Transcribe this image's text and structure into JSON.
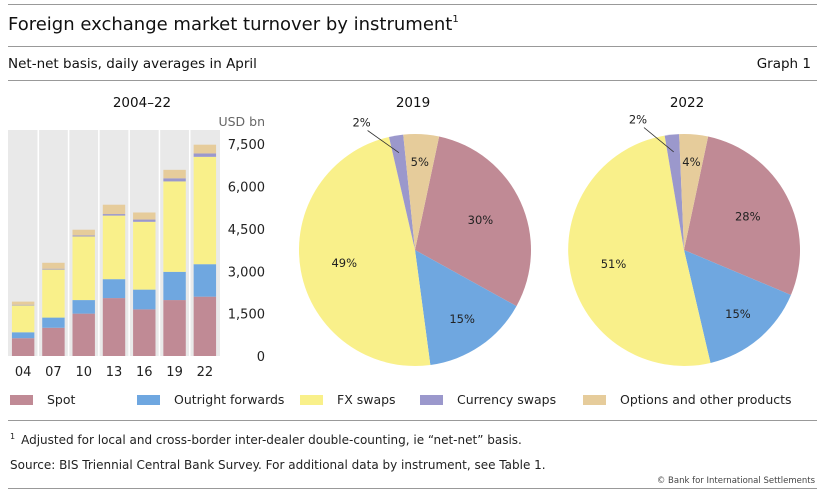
{
  "header": {
    "title": "Foreign exchange market turnover by instrument",
    "title_note": "1",
    "subtitle": "Net-net basis, daily averages in April",
    "graph_number": "Graph 1"
  },
  "colors": {
    "spot": "#c08a95",
    "outright": "#6fa7e0",
    "fxswaps": "#f9f08a",
    "currency_swaps": "#9b98cc",
    "options": "#e6cc9b",
    "panel_bg": "#e9e9e9"
  },
  "legend": [
    {
      "label": "Spot",
      "color": "#c08a95"
    },
    {
      "label": "Outright forwards",
      "color": "#6fa7e0"
    },
    {
      "label": "FX swaps",
      "color": "#f9f08a"
    },
    {
      "label": "Currency swaps",
      "color": "#9b98cc"
    },
    {
      "label": "Options and other products",
      "color": "#e6cc9b"
    }
  ],
  "footer": {
    "note_marker": "1",
    "note": "Adjusted for local and cross-border inter-dealer double-counting, ie “net-net” basis.",
    "source": "Source: BIS Triennial Central Bank Survey. For additional data by instrument, see Table 1.",
    "copyright": "© Bank for International Settlements"
  },
  "chart_data": [
    {
      "type": "bar",
      "stacked": true,
      "title": "2004–22",
      "ylabel": "USD bn",
      "y_axis_position": "right",
      "ylim": [
        0,
        8000
      ],
      "yticks": [
        0,
        1500,
        3000,
        4500,
        6000,
        7500
      ],
      "ytick_labels": [
        "0",
        "1,500",
        "3,000",
        "4,500",
        "6,000",
        "7,500"
      ],
      "categories": [
        "04",
        "07",
        "10",
        "13",
        "16",
        "19",
        "22"
      ],
      "series": [
        {
          "name": "Spot",
          "color": "#c08a95",
          "values": [
            630,
            1000,
            1500,
            2050,
            1650,
            1980,
            2100
          ]
        },
        {
          "name": "Outright forwards",
          "color": "#6fa7e0",
          "values": [
            210,
            360,
            480,
            670,
            700,
            1000,
            1150
          ]
        },
        {
          "name": "FX swaps",
          "color": "#f9f08a",
          "values": [
            950,
            1700,
            2250,
            2250,
            2400,
            3200,
            3800
          ]
        },
        {
          "name": "Currency swaps",
          "color": "#9b98cc",
          "values": [
            25,
            30,
            40,
            55,
            80,
            110,
            120
          ]
        },
        {
          "name": "Options and other products",
          "color": "#e6cc9b",
          "values": [
            110,
            210,
            200,
            330,
            250,
            300,
            310
          ]
        }
      ]
    },
    {
      "type": "pie",
      "title": "2019",
      "slices": [
        {
          "name": "Spot",
          "value": 30,
          "label": "30%",
          "color": "#c08a95"
        },
        {
          "name": "Outright forwards",
          "value": 15,
          "label": "15%",
          "color": "#6fa7e0"
        },
        {
          "name": "FX swaps",
          "value": 49,
          "label": "49%",
          "color": "#f9f08a"
        },
        {
          "name": "Currency swaps",
          "value": 2,
          "label": "2%",
          "color": "#9b98cc"
        },
        {
          "name": "Options and other products",
          "value": 5,
          "label": "5%",
          "color": "#e6cc9b"
        }
      ]
    },
    {
      "type": "pie",
      "title": "2022",
      "slices": [
        {
          "name": "Spot",
          "value": 28,
          "label": "28%",
          "color": "#c08a95"
        },
        {
          "name": "Outright forwards",
          "value": 15,
          "label": "15%",
          "color": "#6fa7e0"
        },
        {
          "name": "FX swaps",
          "value": 51,
          "label": "51%",
          "color": "#f9f08a"
        },
        {
          "name": "Currency swaps",
          "value": 2,
          "label": "2%",
          "color": "#9b98cc"
        },
        {
          "name": "Options and other products",
          "value": 4,
          "label": "4%",
          "color": "#e6cc9b"
        }
      ]
    }
  ]
}
